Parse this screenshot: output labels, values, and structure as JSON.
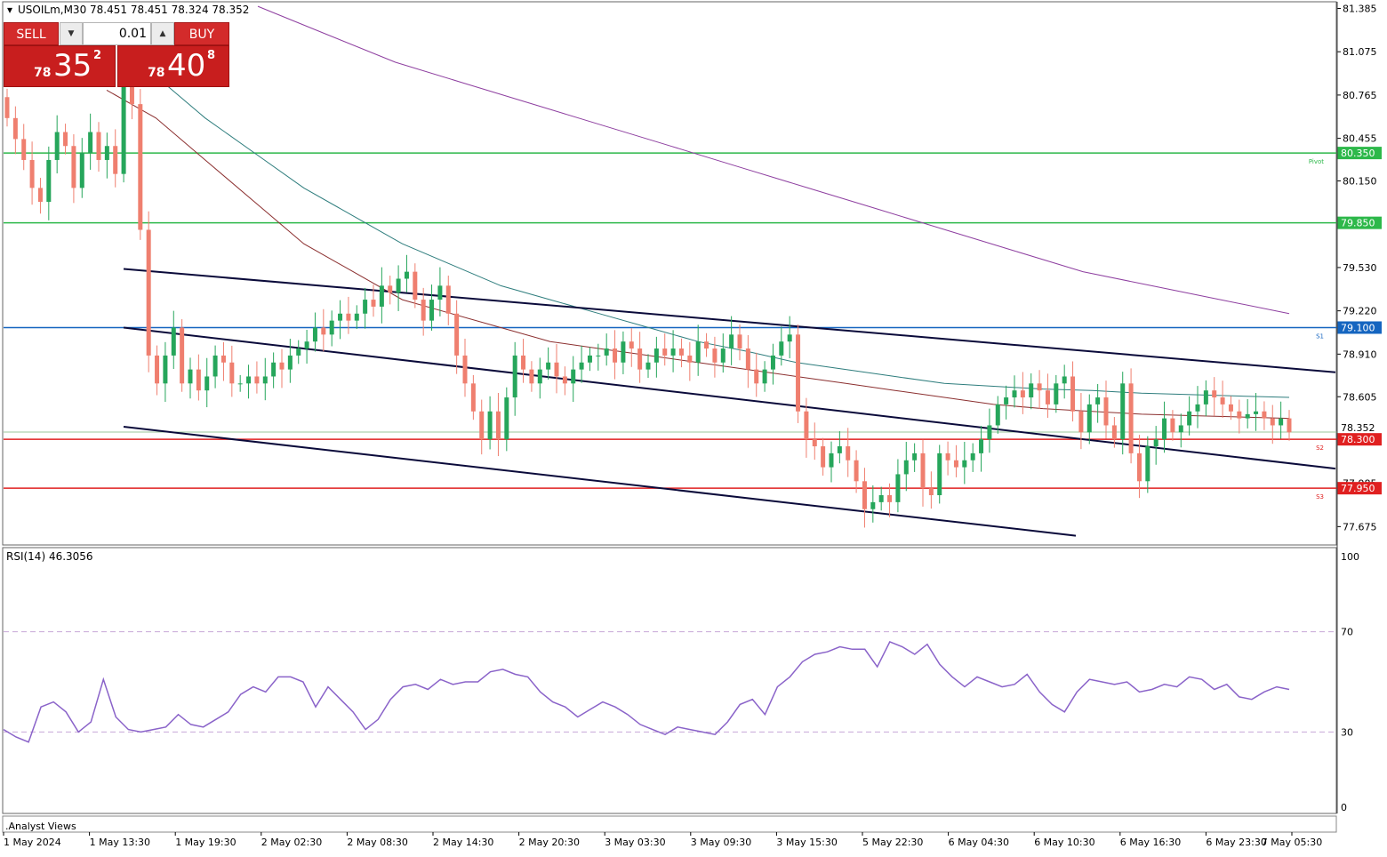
{
  "header": {
    "symbol_info": "USOILm,M30  78.451 78.451 78.324 78.352"
  },
  "trade_panel": {
    "sell_label": "SELL",
    "buy_label": "BUY",
    "volume": "0.01",
    "sell_price_prefix": "78",
    "sell_price_big": "35",
    "sell_price_sup": "2",
    "buy_price_prefix": "78",
    "buy_price_big": "40",
    "buy_price_sup": "8"
  },
  "price_axis": {
    "ticks": [
      "81.385",
      "81.075",
      "80.765",
      "80.455",
      "80.150",
      "79.530",
      "79.220",
      "78.910",
      "78.605",
      "77.985",
      "77.675"
    ],
    "tick_values": [
      81.385,
      81.075,
      80.765,
      80.455,
      80.15,
      79.53,
      79.22,
      78.91,
      78.605,
      77.985,
      77.675
    ]
  },
  "levels": [
    {
      "label": "80.350",
      "value": 80.35,
      "color": "#2db84a",
      "tag": "Pivot"
    },
    {
      "label": "79.850",
      "value": 79.85,
      "color": "#2db84a",
      "tag": ""
    },
    {
      "label": "79.100",
      "value": 79.1,
      "color": "#1565c0",
      "tag": "S1"
    },
    {
      "label": "78.300",
      "value": 78.3,
      "color": "#e02020",
      "tag": "S2"
    },
    {
      "label": "77.950",
      "value": 77.95,
      "color": "#e02020",
      "tag": "S3"
    }
  ],
  "current_price": {
    "label": "78.352",
    "value": 78.352
  },
  "rsi": {
    "label": "RSI(14) 46.3056",
    "axis_ticks": [
      "100",
      "70",
      "30",
      "0"
    ],
    "axis_values": [
      100,
      70,
      30,
      0
    ],
    "color": "#8a63c9"
  },
  "analyst_views_label": ".Analyst Views",
  "time_axis": {
    "labels": [
      "1 May 2024",
      "1 May 13:30",
      "1 May 19:30",
      "2 May 02:30",
      "2 May 08:30",
      "2 May 14:30",
      "2 May 20:30",
      "3 May 03:30",
      "3 May 09:30",
      "3 May 15:30",
      "5 May 22:30",
      "6 May 04:30",
      "6 May 10:30",
      "6 May 16:30",
      "6 May 23:30",
      "7 May 05:30"
    ]
  },
  "colors": {
    "bull": "#26a65b",
    "bear": "#ef7f6f",
    "ma_red": "#8b2f2f",
    "ma_teal": "#2e7d7d",
    "ma_purple": "#8e3fa0",
    "channel": "#0a0a3a"
  },
  "chart_data": {
    "type": "candlestick",
    "symbol": "USOILm",
    "timeframe": "M30",
    "ylim": [
      77.55,
      81.42
    ],
    "candles_close": [
      80.6,
      80.45,
      80.3,
      80.1,
      80.0,
      80.3,
      80.5,
      80.4,
      80.1,
      80.35,
      80.5,
      80.3,
      80.4,
      80.2,
      80.9,
      80.7,
      79.8,
      78.9,
      78.7,
      78.9,
      79.1,
      78.7,
      78.8,
      78.65,
      78.75,
      78.9,
      78.85,
      78.7,
      78.7,
      78.75,
      78.7,
      78.75,
      78.85,
      78.8,
      78.9,
      78.95,
      79.0,
      79.1,
      79.05,
      79.15,
      79.2,
      79.15,
      79.2,
      79.3,
      79.25,
      79.4,
      79.35,
      79.45,
      79.5,
      79.3,
      79.15,
      79.3,
      79.4,
      79.2,
      78.9,
      78.7,
      78.5,
      78.3,
      78.5,
      78.3,
      78.6,
      78.9,
      78.8,
      78.7,
      78.8,
      78.85,
      78.75,
      78.7,
      78.8,
      78.85,
      78.9,
      78.9,
      78.95,
      78.85,
      79.0,
      78.95,
      78.8,
      78.85,
      78.95,
      78.9,
      78.95,
      78.9,
      78.85,
      79.0,
      78.95,
      78.85,
      78.95,
      79.05,
      78.95,
      78.8,
      78.7,
      78.8,
      78.9,
      79.0,
      79.05,
      78.5,
      78.3,
      78.25,
      78.1,
      78.2,
      78.25,
      78.15,
      78.0,
      77.8,
      77.85,
      77.9,
      77.85,
      78.05,
      78.15,
      78.2,
      77.95,
      77.9,
      78.2,
      78.15,
      78.1,
      78.15,
      78.2,
      78.3,
      78.4,
      78.55,
      78.6,
      78.65,
      78.6,
      78.7,
      78.65,
      78.55,
      78.7,
      78.75,
      78.5,
      78.35,
      78.55,
      78.6,
      78.4,
      78.3,
      78.7,
      78.2,
      78.0,
      78.25,
      78.3,
      78.45,
      78.35,
      78.4,
      78.5,
      78.55,
      78.65,
      78.6,
      78.55,
      78.5,
      78.45,
      78.48,
      78.5,
      78.45,
      78.4,
      78.45,
      78.35
    ],
    "rsi_values": [
      31,
      28,
      26,
      40,
      42,
      38,
      30,
      34,
      51,
      36,
      31,
      30,
      31,
      32,
      37,
      33,
      32,
      35,
      38,
      45,
      48,
      46,
      52,
      52,
      50,
      40,
      48,
      43,
      38,
      31,
      35,
      43,
      48,
      49,
      47,
      51,
      49,
      50,
      50,
      54,
      55,
      53,
      52,
      46,
      42,
      40,
      36,
      39,
      42,
      40,
      37,
      33,
      31,
      29,
      32,
      31,
      30,
      29,
      34,
      41,
      43,
      37,
      48,
      52,
      58,
      61,
      62,
      64,
      63,
      63,
      56,
      66,
      64,
      61,
      65,
      57,
      52,
      48,
      52,
      50,
      48,
      49,
      53,
      46,
      41,
      38,
      46,
      51,
      50,
      49,
      50,
      46,
      47,
      49,
      48,
      52,
      51,
      47,
      49,
      44,
      43,
      46,
      48,
      47
    ],
    "series": [
      {
        "name": "",
        "type": "moving-average",
        "values": [
          80.8,
          80.6,
          80.3,
          80.0,
          79.7,
          79.5,
          79.3,
          79.2,
          79.1,
          79.0,
          78.95,
          78.9,
          78.85,
          78.8,
          78.75,
          78.7,
          78.65,
          78.6,
          78.55,
          78.52,
          78.5,
          78.48,
          78.47,
          78.46,
          78.45
        ]
      },
      {
        "name": "",
        "type": "moving-average",
        "values": [
          81.2,
          80.9,
          80.6,
          80.35,
          80.1,
          79.9,
          79.7,
          79.55,
          79.4,
          79.3,
          79.2,
          79.1,
          79.0,
          78.93,
          78.85,
          78.8,
          78.75,
          78.7,
          78.68,
          78.66,
          78.65,
          78.63,
          78.62,
          78.61,
          78.6
        ]
      },
      {
        "name": "",
        "type": "moving-average",
        "values": [
          81.4,
          81.2,
          81.0,
          80.85,
          80.7,
          80.55,
          80.4,
          80.25,
          80.1,
          79.95,
          79.8,
          79.65,
          79.5,
          79.4,
          79.3,
          79.2
        ]
      }
    ]
  }
}
